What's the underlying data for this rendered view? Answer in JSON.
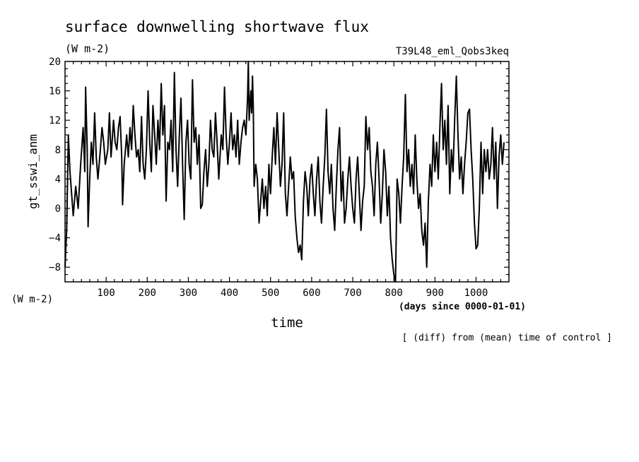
{
  "figure": {
    "title": "surface downwelling shortwave flux",
    "units_top": "(W m-2)",
    "run_label": "T39L48_eml_Qobs3keq",
    "ylabel": "gt_sswi_anm",
    "units_bottom_left": "(W m-2)",
    "x_axis_units": "(days since 0000-01-01)",
    "xlabel": "time",
    "footnote": "[ (diff) from (mean) time of control ]"
  },
  "chart_data": {
    "type": "line",
    "title": "surface downwelling shortwave flux",
    "xlabel": "time",
    "ylabel": "gt_sswi_anm",
    "xlim": [
      0,
      1080
    ],
    "ylim": [
      -10,
      20
    ],
    "x_ticks": [
      100,
      200,
      300,
      400,
      500,
      600,
      700,
      800,
      900,
      1000
    ],
    "y_ticks": [
      -8,
      -4,
      0,
      4,
      8,
      12,
      16,
      20
    ],
    "x_tick_labels": [
      "100",
      "200",
      "300",
      "400",
      "500",
      "600",
      "700",
      "800",
      "900",
      "1000"
    ],
    "y_tick_labels": [
      "-8",
      "-4",
      "0",
      "4",
      "8",
      "12",
      "16",
      "20"
    ],
    "grid": false,
    "series": [
      {
        "points": [
          [
            0,
            -8
          ],
          [
            4,
            -3
          ],
          [
            8,
            10
          ],
          [
            12,
            5
          ],
          [
            16,
            2
          ],
          [
            20,
            -1
          ],
          [
            26,
            3
          ],
          [
            32,
            0
          ],
          [
            38,
            6
          ],
          [
            44,
            11
          ],
          [
            48,
            5
          ],
          [
            50,
            16.5
          ],
          [
            54,
            8
          ],
          [
            56,
            -2.5
          ],
          [
            60,
            4
          ],
          [
            64,
            9
          ],
          [
            68,
            6
          ],
          [
            72,
            13
          ],
          [
            76,
            7
          ],
          [
            80,
            4
          ],
          [
            86,
            8
          ],
          [
            90,
            11
          ],
          [
            94,
            9
          ],
          [
            98,
            6
          ],
          [
            104,
            8
          ],
          [
            108,
            13
          ],
          [
            112,
            7
          ],
          [
            118,
            12
          ],
          [
            122,
            9
          ],
          [
            126,
            8
          ],
          [
            130,
            11
          ],
          [
            134,
            12.5
          ],
          [
            138,
            7
          ],
          [
            140,
            0.5
          ],
          [
            144,
            6
          ],
          [
            150,
            10
          ],
          [
            154,
            7
          ],
          [
            158,
            11
          ],
          [
            162,
            8
          ],
          [
            166,
            14
          ],
          [
            170,
            10
          ],
          [
            174,
            7
          ],
          [
            178,
            8
          ],
          [
            182,
            5
          ],
          [
            186,
            12.5
          ],
          [
            190,
            6
          ],
          [
            194,
            4
          ],
          [
            198,
            8
          ],
          [
            202,
            16
          ],
          [
            206,
            9
          ],
          [
            210,
            5
          ],
          [
            214,
            14
          ],
          [
            218,
            10
          ],
          [
            222,
            6
          ],
          [
            226,
            12
          ],
          [
            230,
            8
          ],
          [
            234,
            17
          ],
          [
            238,
            10
          ],
          [
            242,
            14
          ],
          [
            246,
            1
          ],
          [
            250,
            9
          ],
          [
            254,
            8
          ],
          [
            258,
            12
          ],
          [
            262,
            5
          ],
          [
            266,
            18.5
          ],
          [
            270,
            8
          ],
          [
            274,
            3
          ],
          [
            278,
            10
          ],
          [
            282,
            15
          ],
          [
            286,
            6
          ],
          [
            290,
            -1.5
          ],
          [
            294,
            9
          ],
          [
            298,
            12
          ],
          [
            302,
            6
          ],
          [
            306,
            4
          ],
          [
            310,
            17.5
          ],
          [
            314,
            9
          ],
          [
            318,
            11
          ],
          [
            322,
            6
          ],
          [
            326,
            10
          ],
          [
            330,
            0
          ],
          [
            334,
            0.5
          ],
          [
            338,
            5
          ],
          [
            342,
            8
          ],
          [
            346,
            3
          ],
          [
            350,
            6
          ],
          [
            354,
            12
          ],
          [
            358,
            8
          ],
          [
            362,
            7
          ],
          [
            366,
            13
          ],
          [
            370,
            9
          ],
          [
            374,
            4
          ],
          [
            380,
            10
          ],
          [
            384,
            8
          ],
          [
            388,
            16.5
          ],
          [
            392,
            10
          ],
          [
            396,
            6
          ],
          [
            400,
            9
          ],
          [
            404,
            13
          ],
          [
            408,
            8
          ],
          [
            412,
            10
          ],
          [
            416,
            7
          ],
          [
            420,
            12
          ],
          [
            424,
            6
          ],
          [
            428,
            9
          ],
          [
            432,
            11
          ],
          [
            436,
            12
          ],
          [
            440,
            10
          ],
          [
            444,
            15
          ],
          [
            446,
            20
          ],
          [
            448,
            12
          ],
          [
            452,
            16
          ],
          [
            454,
            13
          ],
          [
            456,
            18
          ],
          [
            458,
            14
          ],
          [
            460,
            3
          ],
          [
            464,
            6
          ],
          [
            468,
            4
          ],
          [
            472,
            -2
          ],
          [
            476,
            1
          ],
          [
            480,
            4
          ],
          [
            484,
            0
          ],
          [
            488,
            3
          ],
          [
            492,
            -1
          ],
          [
            496,
            6
          ],
          [
            500,
            2
          ],
          [
            504,
            7
          ],
          [
            508,
            11
          ],
          [
            512,
            6
          ],
          [
            516,
            13
          ],
          [
            520,
            8
          ],
          [
            524,
            3
          ],
          [
            528,
            6
          ],
          [
            532,
            13
          ],
          [
            536,
            2
          ],
          [
            540,
            -1
          ],
          [
            544,
            3
          ],
          [
            548,
            7
          ],
          [
            552,
            4
          ],
          [
            556,
            5
          ],
          [
            560,
            -1
          ],
          [
            564,
            -4
          ],
          [
            568,
            -6
          ],
          [
            572,
            -5
          ],
          [
            576,
            -7
          ],
          [
            580,
            1
          ],
          [
            584,
            5
          ],
          [
            588,
            3
          ],
          [
            592,
            -1
          ],
          [
            596,
            4
          ],
          [
            600,
            6
          ],
          [
            604,
            2
          ],
          [
            608,
            -1
          ],
          [
            612,
            4
          ],
          [
            616,
            7
          ],
          [
            620,
            1
          ],
          [
            624,
            -2
          ],
          [
            628,
            3
          ],
          [
            632,
            7
          ],
          [
            636,
            13.5
          ],
          [
            640,
            5
          ],
          [
            644,
            2
          ],
          [
            648,
            6
          ],
          [
            652,
            0
          ],
          [
            656,
            -3
          ],
          [
            660,
            3
          ],
          [
            664,
            8
          ],
          [
            668,
            11
          ],
          [
            672,
            1
          ],
          [
            676,
            5
          ],
          [
            680,
            -2
          ],
          [
            684,
            0
          ],
          [
            688,
            4
          ],
          [
            692,
            7
          ],
          [
            696,
            3
          ],
          [
            700,
            0
          ],
          [
            704,
            -2
          ],
          [
            708,
            4
          ],
          [
            712,
            7
          ],
          [
            716,
            2
          ],
          [
            720,
            -3
          ],
          [
            724,
            1
          ],
          [
            728,
            3
          ],
          [
            732,
            12.5
          ],
          [
            736,
            8
          ],
          [
            740,
            11
          ],
          [
            744,
            5
          ],
          [
            748,
            3
          ],
          [
            752,
            -1
          ],
          [
            756,
            6
          ],
          [
            760,
            9
          ],
          [
            764,
            4
          ],
          [
            768,
            -2
          ],
          [
            772,
            2
          ],
          [
            776,
            8
          ],
          [
            780,
            5
          ],
          [
            784,
            -1
          ],
          [
            788,
            3
          ],
          [
            792,
            -4
          ],
          [
            796,
            -7
          ],
          [
            800,
            -9
          ],
          [
            804,
            -10
          ],
          [
            808,
            4
          ],
          [
            812,
            2
          ],
          [
            816,
            -2
          ],
          [
            820,
            3
          ],
          [
            824,
            7
          ],
          [
            828,
            15.5
          ],
          [
            832,
            5
          ],
          [
            836,
            8
          ],
          [
            840,
            3
          ],
          [
            844,
            6
          ],
          [
            848,
            2
          ],
          [
            852,
            10
          ],
          [
            856,
            4
          ],
          [
            860,
            0
          ],
          [
            864,
            2
          ],
          [
            868,
            -3
          ],
          [
            872,
            -5
          ],
          [
            876,
            -2
          ],
          [
            880,
            -8
          ],
          [
            884,
            1
          ],
          [
            888,
            6
          ],
          [
            892,
            3
          ],
          [
            896,
            10
          ],
          [
            900,
            5
          ],
          [
            904,
            9
          ],
          [
            908,
            4
          ],
          [
            912,
            11
          ],
          [
            916,
            17
          ],
          [
            920,
            8
          ],
          [
            924,
            12
          ],
          [
            928,
            6
          ],
          [
            932,
            14
          ],
          [
            936,
            2
          ],
          [
            940,
            8
          ],
          [
            944,
            5
          ],
          [
            948,
            12
          ],
          [
            952,
            18
          ],
          [
            956,
            10
          ],
          [
            960,
            4
          ],
          [
            964,
            7
          ],
          [
            968,
            2
          ],
          [
            972,
            6
          ],
          [
            976,
            9
          ],
          [
            980,
            13
          ],
          [
            984,
            13.5
          ],
          [
            988,
            8
          ],
          [
            992,
            4
          ],
          [
            996,
            -2
          ],
          [
            1000,
            -5.5
          ],
          [
            1004,
            -5
          ],
          [
            1008,
            0
          ],
          [
            1012,
            9
          ],
          [
            1016,
            2
          ],
          [
            1020,
            8
          ],
          [
            1024,
            5
          ],
          [
            1028,
            8
          ],
          [
            1032,
            4
          ],
          [
            1036,
            6
          ],
          [
            1040,
            11
          ],
          [
            1044,
            4
          ],
          [
            1048,
            9
          ],
          [
            1052,
            0
          ],
          [
            1056,
            7
          ],
          [
            1060,
            10
          ],
          [
            1064,
            6
          ],
          [
            1068,
            9
          ]
        ]
      }
    ]
  }
}
